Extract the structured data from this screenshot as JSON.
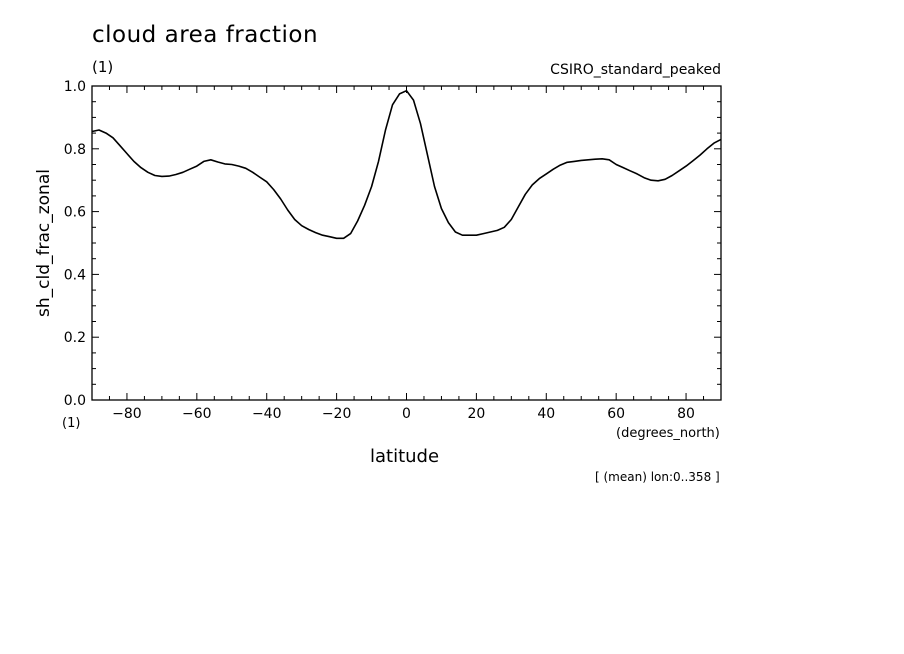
{
  "chart_data": {
    "type": "line",
    "title": "cloud area fraction",
    "title_unit": "(1)",
    "model": "CSIRO_standard_peaked",
    "ylabel": "sh_cld_frac_zonal",
    "y_unit": "(1)",
    "xlabel": "latitude",
    "x_unit": "(degrees_north)",
    "note": "[ (mean) lon:0..358 ]",
    "xlim": [
      -90,
      90
    ],
    "ylim": [
      0.0,
      1.0
    ],
    "x_ticks": [
      -80,
      -60,
      -40,
      -20,
      0,
      20,
      40,
      60,
      80
    ],
    "y_ticks": [
      0.0,
      0.2,
      0.4,
      0.6,
      0.8,
      1.0
    ],
    "x_tick_labels": [
      "−80",
      "−60",
      "−40",
      "−20",
      "0",
      "20",
      "40",
      "60",
      "80"
    ],
    "y_tick_labels": [
      "0.0",
      "0.2",
      "0.4",
      "0.6",
      "0.8",
      "1.0"
    ],
    "grid": false,
    "line_color": "#000000",
    "series": [
      {
        "x": [
          -90,
          -88,
          -86,
          -84,
          -82,
          -80,
          -78,
          -76,
          -74,
          -72,
          -70,
          -68,
          -66,
          -64,
          -62,
          -60,
          -58,
          -56,
          -54,
          -52,
          -50,
          -48,
          -46,
          -44,
          -42,
          -40,
          -38,
          -36,
          -34,
          -32,
          -30,
          -28,
          -26,
          -24,
          -22,
          -20,
          -18,
          -16,
          -14,
          -12,
          -10,
          -8,
          -6,
          -4,
          -2,
          0,
          2,
          4,
          6,
          8,
          10,
          12,
          14,
          16,
          18,
          20,
          22,
          24,
          26,
          28,
          30,
          32,
          34,
          36,
          38,
          40,
          42,
          44,
          46,
          48,
          50,
          52,
          54,
          56,
          58,
          60,
          62,
          64,
          66,
          68,
          70,
          72,
          74,
          76,
          78,
          80,
          82,
          84,
          86,
          88,
          90
        ],
        "y": [
          0.855,
          0.86,
          0.85,
          0.835,
          0.81,
          0.785,
          0.76,
          0.74,
          0.725,
          0.715,
          0.712,
          0.713,
          0.718,
          0.725,
          0.735,
          0.745,
          0.76,
          0.765,
          0.758,
          0.752,
          0.75,
          0.745,
          0.738,
          0.725,
          0.71,
          0.695,
          0.67,
          0.64,
          0.605,
          0.575,
          0.555,
          0.543,
          0.533,
          0.525,
          0.52,
          0.515,
          0.515,
          0.53,
          0.57,
          0.62,
          0.68,
          0.76,
          0.86,
          0.94,
          0.975,
          0.985,
          0.955,
          0.88,
          0.78,
          0.68,
          0.61,
          0.565,
          0.535,
          0.525,
          0.525,
          0.525,
          0.53,
          0.535,
          0.54,
          0.55,
          0.575,
          0.615,
          0.655,
          0.685,
          0.705,
          0.72,
          0.735,
          0.748,
          0.757,
          0.76,
          0.763,
          0.765,
          0.767,
          0.768,
          0.765,
          0.75,
          0.74,
          0.73,
          0.72,
          0.708,
          0.7,
          0.698,
          0.703,
          0.715,
          0.73,
          0.745,
          0.762,
          0.78,
          0.8,
          0.818,
          0.83
        ]
      }
    ]
  }
}
